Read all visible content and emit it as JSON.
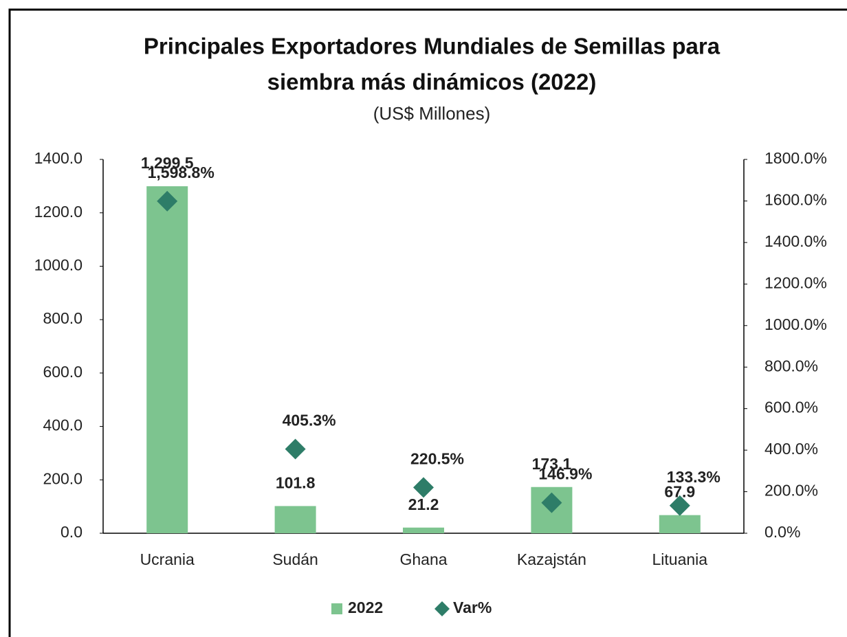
{
  "chart_data": {
    "type": "bar",
    "title": "Principales Exportadores Mundiales de Semillas para",
    "title_line2": "siembra más dinámicos (2022)",
    "subtitle": "(US$ Millones)",
    "categories": [
      "Ucrania",
      "Sudán",
      "Ghana",
      "Kazajstán",
      "Lituania"
    ],
    "series": [
      {
        "name": "2022",
        "type": "bar",
        "color": "#7dc48f",
        "values": [
          1299.5,
          101.8,
          21.2,
          173.1,
          67.9
        ],
        "value_labels": [
          "1,299.5",
          "101.8",
          "21.2",
          "173.1",
          "67.9"
        ]
      },
      {
        "name": "Var%",
        "type": "scatter",
        "axis": "y2",
        "color": "#2e7d68",
        "values": [
          1598.8,
          405.3,
          220.5,
          146.9,
          133.3
        ],
        "value_labels": [
          "1,598.8%",
          "405.3%",
          "220.5%",
          "146.9%",
          "133.3%"
        ]
      }
    ],
    "ylim": [
      0,
      1400
    ],
    "yticks": [
      {
        "value": 0,
        "label": "0.0"
      },
      {
        "value": 200,
        "label": "200.0"
      },
      {
        "value": 400,
        "label": "400.0"
      },
      {
        "value": 600,
        "label": "600.0"
      },
      {
        "value": 800,
        "label": "800.0"
      },
      {
        "value": 1000,
        "label": "1000.0"
      },
      {
        "value": 1200,
        "label": "1200.0"
      },
      {
        "value": 1400,
        "label": "1400.0"
      }
    ],
    "y2lim": [
      0,
      1800
    ],
    "y2ticks": [
      {
        "value": 0,
        "label": "0.0%"
      },
      {
        "value": 200,
        "label": "200.0%"
      },
      {
        "value": 400,
        "label": "400.0%"
      },
      {
        "value": 600,
        "label": "600.0%"
      },
      {
        "value": 800,
        "label": "800.0%"
      },
      {
        "value": 1000,
        "label": "1000.0%"
      },
      {
        "value": 1200,
        "label": "1200.0%"
      },
      {
        "value": 1400,
        "label": "1400.0%"
      },
      {
        "value": 1600,
        "label": "1600.0%"
      },
      {
        "value": 1800,
        "label": "1800.0%"
      }
    ],
    "grid": false,
    "legend": "bottom"
  }
}
